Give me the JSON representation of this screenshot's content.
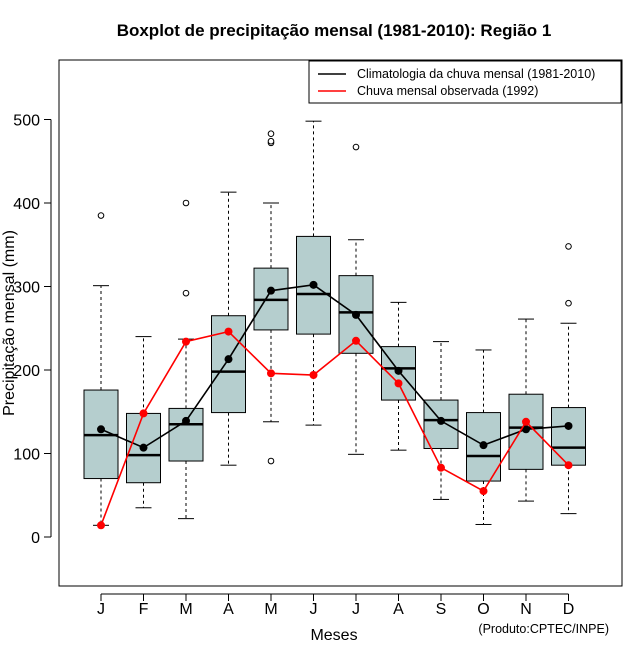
{
  "chart_data": {
    "type": "boxplot",
    "title": "Boxplot de precipitação mensal (1981-2010): Região 1",
    "xlabel": "Meses",
    "ylabel": "Precipitação mensal (mm)",
    "credit": "(Produto:CPTEC/INPE)",
    "ylim": [
      -60,
      570
    ],
    "yticks": [
      0,
      100,
      200,
      300,
      400,
      500
    ],
    "categories": [
      "J",
      "F",
      "M",
      "A",
      "M",
      "J",
      "J",
      "A",
      "S",
      "O",
      "N",
      "D"
    ],
    "boxes": [
      {
        "low": 14,
        "q1": 70,
        "median": 122,
        "q3": 176,
        "high": 301,
        "outliers": [
          385
        ]
      },
      {
        "low": 35,
        "q1": 65,
        "median": 98,
        "q3": 148,
        "high": 240,
        "outliers": []
      },
      {
        "low": 22,
        "q1": 91,
        "median": 135,
        "q3": 154,
        "high": 237,
        "outliers": [
          292,
          400
        ]
      },
      {
        "low": 86,
        "q1": 149,
        "median": 198,
        "q3": 265,
        "high": 413,
        "outliers": []
      },
      {
        "low": 138,
        "q1": 248,
        "median": 284,
        "q3": 322,
        "high": 400,
        "outliers": [
          91,
          472,
          474,
          483
        ]
      },
      {
        "low": 134,
        "q1": 243,
        "median": 291,
        "q3": 360,
        "high": 498,
        "outliers": []
      },
      {
        "low": 99,
        "q1": 220,
        "median": 269,
        "q3": 313,
        "high": 356,
        "outliers": [
          467
        ]
      },
      {
        "low": 104,
        "q1": 164,
        "median": 202,
        "q3": 228,
        "high": 281,
        "outliers": []
      },
      {
        "low": 45,
        "q1": 106,
        "median": 140,
        "q3": 164,
        "high": 234,
        "outliers": []
      },
      {
        "low": 15,
        "q1": 67,
        "median": 97,
        "q3": 149,
        "high": 224,
        "outliers": []
      },
      {
        "low": 43,
        "q1": 81,
        "median": 131,
        "q3": 171,
        "high": 261,
        "outliers": []
      },
      {
        "low": 28,
        "q1": 86,
        "median": 107,
        "q3": 155,
        "high": 256,
        "outliers": [
          280,
          348
        ]
      }
    ],
    "series": [
      {
        "name": "Climatologia da chuva mensal (1981-2010)",
        "color": "#000000",
        "values": [
          129,
          107,
          139,
          213,
          295,
          302,
          266,
          199,
          139,
          110,
          129,
          133
        ]
      },
      {
        "name": "Chuva mensal observada (1992)",
        "color": "#ff0000",
        "values": [
          14,
          148,
          234,
          246,
          196,
          194,
          235,
          184,
          83,
          55,
          138,
          86
        ]
      }
    ],
    "box_fill": "#b5cece"
  }
}
